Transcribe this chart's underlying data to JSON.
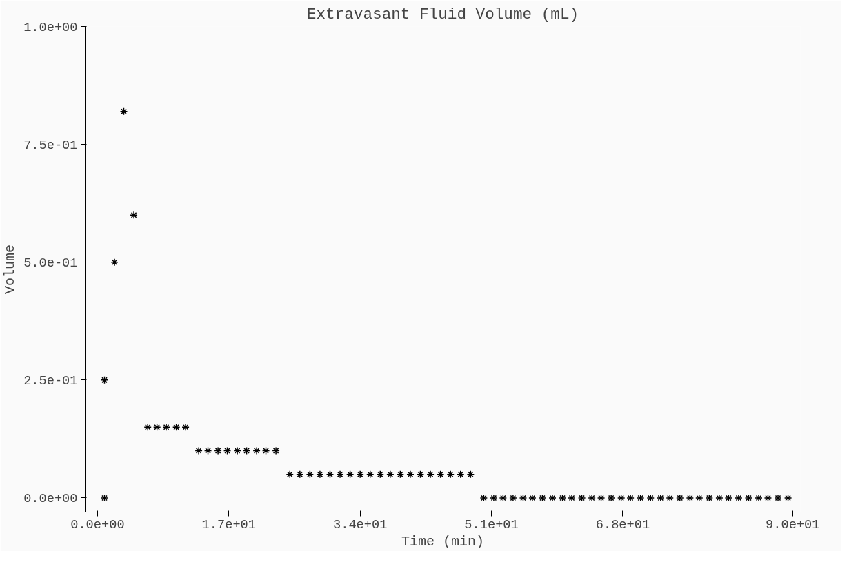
{
  "chart_data": {
    "type": "scatter",
    "title": "Extravasant Fluid Volume (mL)",
    "xlabel": "Time (min)",
    "ylabel": "Volume",
    "marker": "cross",
    "grid": false,
    "color": "#000000",
    "x": [
      0.9,
      0.9,
      2.2,
      3.4,
      4.7,
      6.5,
      7.7,
      8.9,
      10.2,
      11.4,
      13.1,
      14.3,
      15.6,
      16.8,
      18.1,
      19.3,
      20.6,
      21.8,
      23.1,
      24.9,
      26.2,
      27.5,
      28.8,
      30.1,
      31.4,
      32.7,
      34.0,
      35.3,
      36.6,
      37.9,
      39.2,
      40.5,
      41.8,
      43.1,
      44.4,
      45.7,
      47.0,
      48.3,
      50.0,
      51.3,
      52.5,
      53.8,
      55.1,
      56.3,
      57.6,
      58.9,
      60.2,
      61.4,
      62.7,
      64.0,
      65.2,
      66.5,
      67.8,
      69.0,
      70.3,
      71.6,
      72.9,
      74.1,
      75.4,
      76.7,
      77.9,
      79.2,
      80.5,
      81.7,
      83.0,
      84.3,
      85.6,
      86.8,
      88.1,
      89.4
    ],
    "values": [
      0,
      0.25,
      0.5,
      0.82,
      0.6,
      0.15,
      0.15,
      0.15,
      0.15,
      0.15,
      0.1,
      0.1,
      0.1,
      0.1,
      0.1,
      0.1,
      0.1,
      0.1,
      0.1,
      0.05,
      0.05,
      0.05,
      0.05,
      0.05,
      0.05,
      0.05,
      0.05,
      0.05,
      0.05,
      0.05,
      0.05,
      0.05,
      0.05,
      0.05,
      0.05,
      0.05,
      0.05,
      0.05,
      0,
      0,
      0,
      0,
      0,
      0,
      0,
      0,
      0,
      0,
      0,
      0,
      0,
      0,
      0,
      0,
      0,
      0,
      0,
      0,
      0,
      0,
      0,
      0,
      0,
      0,
      0,
      0,
      0,
      0,
      0,
      0
    ],
    "xlim": [
      -1.6,
      91
    ],
    "ylim": [
      -0.03,
      1.0
    ],
    "xticks": [
      {
        "value": 0,
        "label": "0.0e+00"
      },
      {
        "value": 17,
        "label": "1.7e+01"
      },
      {
        "value": 34,
        "label": "3.4e+01"
      },
      {
        "value": 51,
        "label": "5.1e+01"
      },
      {
        "value": 68,
        "label": "6.8e+01"
      },
      {
        "value": 90,
        "label": "9.0e+01"
      }
    ],
    "yticks": [
      {
        "value": 0,
        "label": "0.0e+00"
      },
      {
        "value": 0.25,
        "label": "2.5e-01"
      },
      {
        "value": 0.5,
        "label": "5.0e-01"
      },
      {
        "value": 0.75,
        "label": "7.5e-01"
      },
      {
        "value": 1.0,
        "label": "1.0e+00"
      }
    ]
  }
}
